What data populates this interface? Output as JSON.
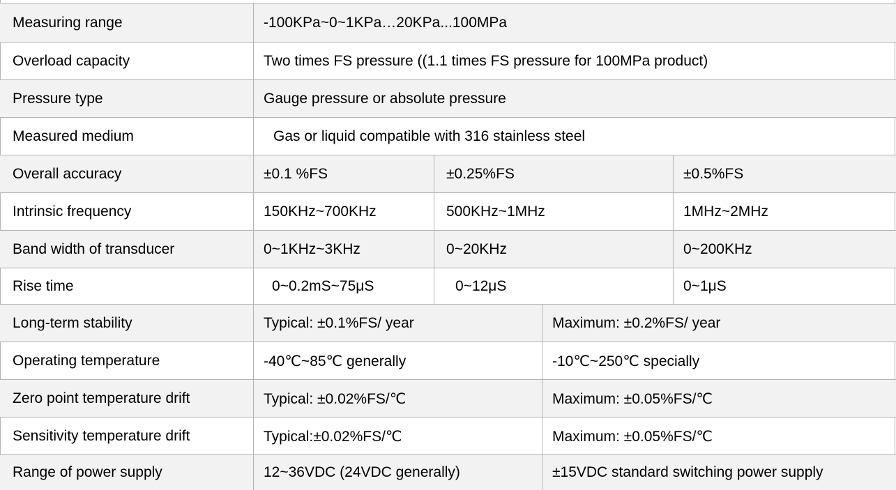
{
  "rows": [
    {
      "label": "Measuring range",
      "values": [
        "-100KPa~0~1KPa…20KPa...100MPa"
      ]
    },
    {
      "label": "Overload capacity",
      "values": [
        "Two times FS pressure ((1.1 times FS pressure for 100MPa product)"
      ]
    },
    {
      "label": "Pressure type",
      "values": [
        "Gauge pressure or absolute pressure"
      ]
    },
    {
      "label": "Measured medium",
      "values": [
        "Gas or liquid compatible with 316 stainless steel"
      ]
    },
    {
      "label": "Overall accuracy",
      "values": [
        "±0.1 %FS",
        "±0.25%FS",
        "±0.5%FS"
      ]
    },
    {
      "label": "Intrinsic frequency",
      "values": [
        "150KHz~700KHz",
        "500KHz~1MHz",
        "1MHz~2MHz"
      ]
    },
    {
      "label": "Band width of transducer",
      "values": [
        "0~1KHz~3KHz",
        "0~20KHz",
        "0~200KHz"
      ]
    },
    {
      "label": "Rise time",
      "values": [
        "0~0.2mS~75μS",
        "0~12μS",
        "0~1μS"
      ]
    },
    {
      "label": "Long-term stability",
      "values": [
        "Typical: ±0.1%FS/ year",
        "Maximum: ±0.2%FS/ year"
      ]
    },
    {
      "label": "Operating temperature",
      "values": [
        "-40℃~85℃ generally",
        "-10℃~250℃ specially"
      ]
    },
    {
      "label": "Zero point temperature drift",
      "values": [
        "Typical: ±0.02%FS/℃",
        "Maximum: ±0.05%FS/℃"
      ]
    },
    {
      "label": "Sensitivity temperature drift",
      "values": [
        "Typical:±0.02%FS/℃",
        "Maximum: ±0.05%FS/℃"
      ]
    },
    {
      "label": "Range of power supply",
      "values": [
        "12~36VDC (24VDC generally)",
        "±15VDC standard switching power supply"
      ]
    }
  ],
  "colors": {
    "border": "#b3b3b3",
    "shade": "#f2f2f2",
    "text": "#000000"
  }
}
